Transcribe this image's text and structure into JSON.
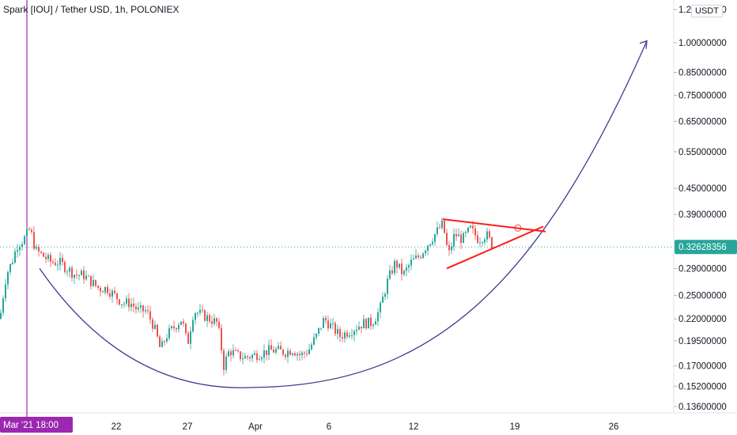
{
  "header": {
    "symbol_title": "Spark [IOU] / Tether USD, 1h, POLONIEX",
    "currency_button": "USDT"
  },
  "colors": {
    "up": "#26a69a",
    "down": "#ef5350",
    "curve": "#3b3b8f",
    "triangle": "#ff1a1a",
    "price_line": "#26a69a",
    "crosshair": "#9c27b0"
  },
  "chart_data": {
    "type": "candlestick",
    "scale": "log",
    "ylim": [
      0.13,
      1.2
    ],
    "y_ticks": [
      "1.20000000",
      "1.00000000",
      "0.85000000",
      "0.75000000",
      "0.65000000",
      "0.55000000",
      "0.45000000",
      "0.39000000",
      "0.29000000",
      "0.25000000",
      "0.22000000",
      "0.19500000",
      "0.17000000",
      "0.15200000",
      "0.13600000"
    ],
    "x_ticks": [
      "22",
      "27",
      "Apr",
      "6",
      "12",
      "19",
      "26"
    ],
    "last_price": "0.32628356",
    "crosshair_label": "Mar '21   18:00",
    "price_path": [
      [
        0,
        0.22
      ],
      [
        8,
        0.28
      ],
      [
        15,
        0.3
      ],
      [
        22,
        0.33
      ],
      [
        30,
        0.34
      ],
      [
        38,
        0.36
      ],
      [
        45,
        0.32
      ],
      [
        55,
        0.31
      ],
      [
        65,
        0.3
      ],
      [
        75,
        0.3
      ],
      [
        85,
        0.29
      ],
      [
        95,
        0.28
      ],
      [
        105,
        0.28
      ],
      [
        115,
        0.27
      ],
      [
        125,
        0.26
      ],
      [
        135,
        0.26
      ],
      [
        145,
        0.25
      ],
      [
        155,
        0.24
      ],
      [
        165,
        0.24
      ],
      [
        175,
        0.23
      ],
      [
        185,
        0.23
      ],
      [
        195,
        0.21
      ],
      [
        203,
        0.185
      ],
      [
        210,
        0.2
      ],
      [
        220,
        0.21
      ],
      [
        230,
        0.22
      ],
      [
        237,
        0.19
      ],
      [
        245,
        0.23
      ],
      [
        255,
        0.225
      ],
      [
        265,
        0.22
      ],
      [
        275,
        0.215
      ],
      [
        283,
        0.17
      ],
      [
        290,
        0.185
      ],
      [
        300,
        0.18
      ],
      [
        310,
        0.178
      ],
      [
        320,
        0.18
      ],
      [
        330,
        0.182
      ],
      [
        340,
        0.185
      ],
      [
        350,
        0.185
      ],
      [
        360,
        0.183
      ],
      [
        370,
        0.186
      ],
      [
        380,
        0.18
      ],
      [
        390,
        0.185
      ],
      [
        400,
        0.2
      ],
      [
        410,
        0.22
      ],
      [
        420,
        0.21
      ],
      [
        430,
        0.2
      ],
      [
        440,
        0.205
      ],
      [
        450,
        0.21
      ],
      [
        460,
        0.215
      ],
      [
        470,
        0.215
      ],
      [
        480,
        0.23
      ],
      [
        490,
        0.27
      ],
      [
        500,
        0.3
      ],
      [
        510,
        0.28
      ],
      [
        520,
        0.3
      ],
      [
        530,
        0.31
      ],
      [
        540,
        0.33
      ],
      [
        550,
        0.35
      ],
      [
        560,
        0.37
      ],
      [
        567,
        0.31
      ],
      [
        575,
        0.35
      ],
      [
        585,
        0.34
      ],
      [
        595,
        0.36
      ],
      [
        605,
        0.34
      ],
      [
        615,
        0.35
      ],
      [
        622,
        0.33
      ]
    ],
    "drawings": {
      "cup_curve": {
        "from": [
          50,
          0.29
        ],
        "bottom": [
          320,
          0.151
        ],
        "to": [
          818,
          1.01
        ],
        "arrow": true
      },
      "triangle_upper": {
        "from": [
          560,
          0.38
        ],
        "to": [
          690,
          0.355
        ]
      },
      "triangle_lower": {
        "from": [
          565,
          0.29
        ],
        "to": [
          687,
          0.365
        ]
      }
    }
  }
}
